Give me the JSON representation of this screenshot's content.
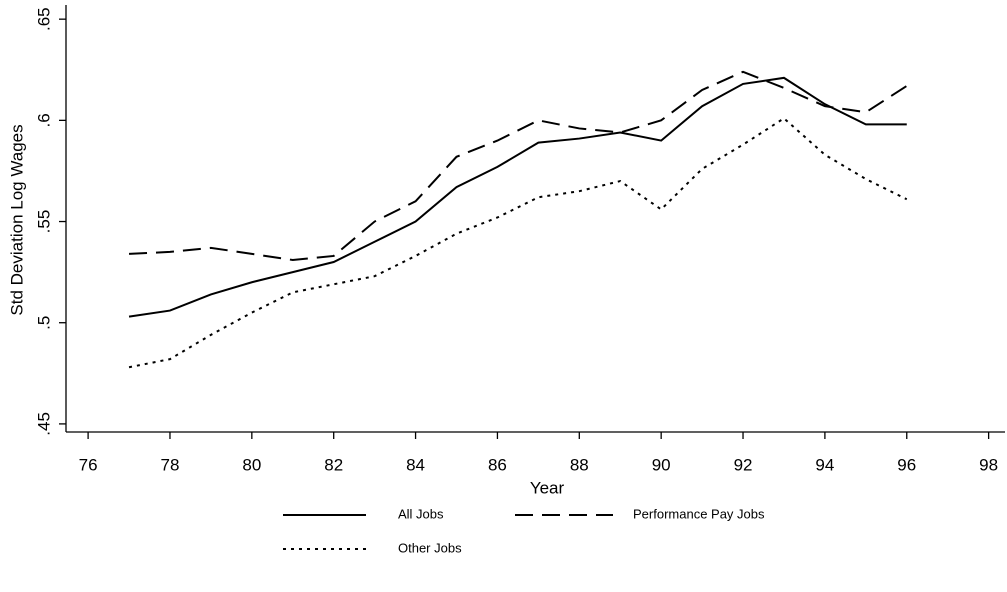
{
  "chart_data": {
    "type": "line",
    "x_label": "Year",
    "y_label": "Std Deviation Log Wages",
    "x": [
      77,
      78,
      79,
      80,
      81,
      82,
      83,
      84,
      85,
      86,
      87,
      88,
      89,
      90,
      91,
      92,
      93,
      94,
      95,
      96
    ],
    "series": [
      {
        "name": "All Jobs",
        "color": "#000000",
        "style": "solid",
        "values": [
          0.503,
          0.506,
          0.514,
          0.52,
          0.525,
          0.53,
          0.54,
          0.55,
          0.567,
          0.577,
          0.589,
          0.591,
          0.594,
          0.59,
          0.607,
          0.618,
          0.621,
          0.608,
          0.598,
          0.598
        ]
      },
      {
        "name": "Performance Pay Jobs",
        "color": "#000000",
        "style": "dashed",
        "values": [
          0.534,
          0.535,
          0.537,
          0.534,
          0.531,
          0.533,
          0.55,
          0.56,
          0.582,
          0.59,
          0.6,
          0.596,
          0.594,
          0.6,
          0.615,
          0.624,
          0.616,
          0.607,
          0.604,
          0.617
        ]
      },
      {
        "name": "Other Jobs",
        "color": "#000000",
        "style": "dotted",
        "values": [
          0.478,
          0.482,
          0.494,
          0.505,
          0.515,
          0.519,
          0.523,
          0.533,
          0.544,
          0.552,
          0.562,
          0.565,
          0.57,
          0.556,
          0.576,
          0.588,
          0.601,
          0.583,
          0.571,
          0.561
        ]
      }
    ],
    "xlim": [
      75.46,
      98.4
    ],
    "xticks": [
      76,
      78,
      80,
      82,
      84,
      86,
      88,
      90,
      92,
      94,
      96,
      98
    ],
    "ylim": [
      0.446,
      0.657
    ],
    "yticks": [
      {
        "value": 0.45,
        "label": ".45"
      },
      {
        "value": 0.5,
        "label": ".5"
      },
      {
        "value": 0.55,
        "label": ".55"
      },
      {
        "value": 0.6,
        "label": ".6"
      },
      {
        "value": 0.65,
        "label": ".65"
      }
    ]
  }
}
